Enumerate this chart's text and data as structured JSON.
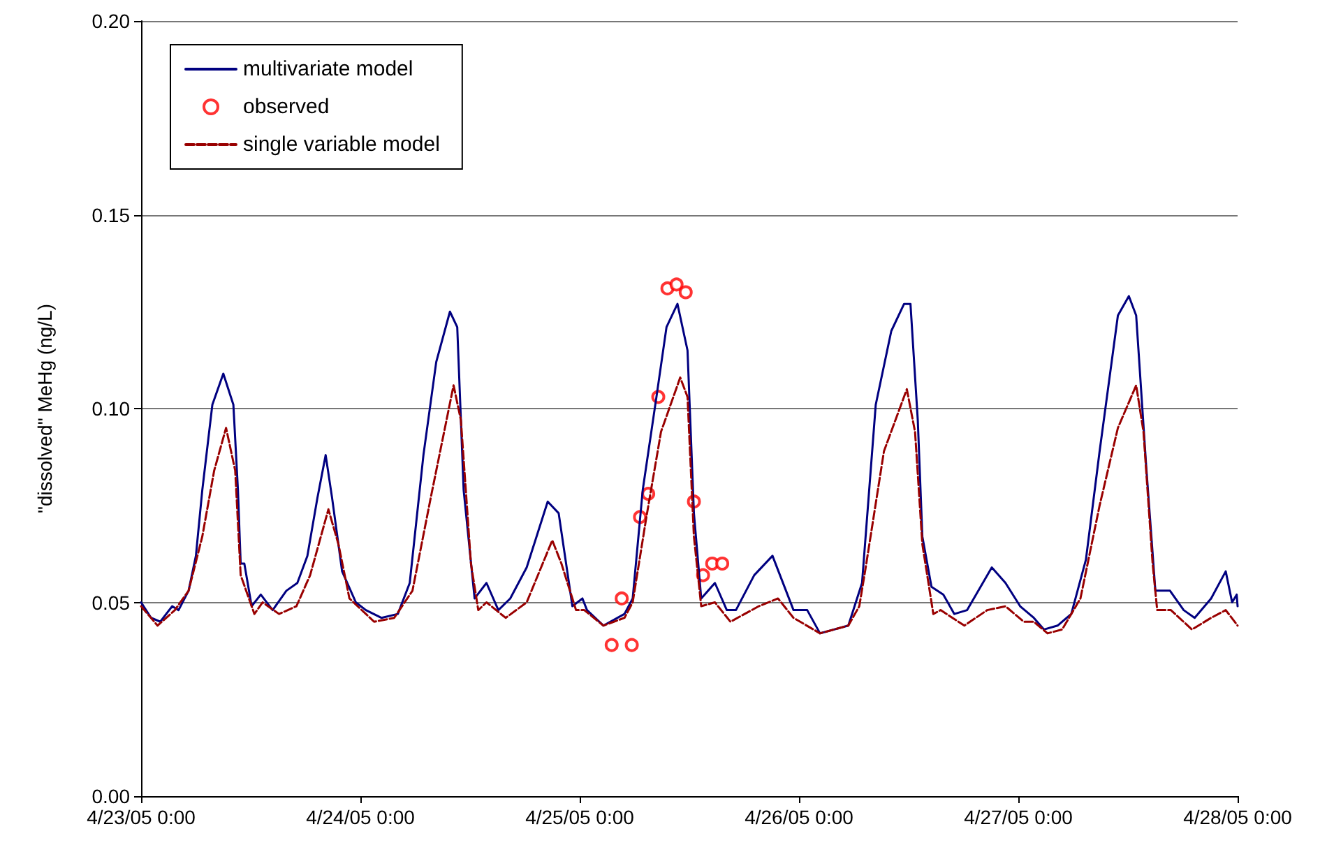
{
  "chart_data": {
    "type": "line",
    "ylabel": "\"dissolved\" MeHg (ng/L)",
    "xlim": [
      "--04-23T00:00",
      "--04-28T00:00"
    ],
    "xticks": [
      {
        "value": "--04-23T00:00",
        "label": "4/23/05 0:00"
      },
      {
        "value": "--04-24T00:00",
        "label": "4/24/05 0:00"
      },
      {
        "value": "--04-25T00:00",
        "label": "4/25/05 0:00"
      },
      {
        "value": "--04-26T00:00",
        "label": "4/26/05 0:00"
      },
      {
        "value": "--04-27T00:00",
        "label": "4/27/05 0:00"
      },
      {
        "value": "--04-28T00:00",
        "label": "4/28/05 0:00"
      }
    ],
    "ylim": [
      0,
      0.2
    ],
    "yticks": [
      {
        "value": 0,
        "label": "0.00"
      },
      {
        "value": 0.05,
        "label": "0.05"
      },
      {
        "value": 0.1,
        "label": "0.10"
      },
      {
        "value": 0.15,
        "label": "0.15"
      },
      {
        "value": 0.2,
        "label": "0.20"
      }
    ],
    "grid": "y",
    "legend": "top left",
    "series": [
      {
        "name": "multivariate model",
        "type": "line",
        "color": "#000080",
        "line_style": "solid",
        "marker": "none",
        "x": [
          "--04-23T00:00",
          "--04-23T01:06",
          "--04-23T02:06",
          "--04-23T03:24",
          "--04-23T04:06",
          "--04-23T05:12",
          "--04-23T06:00",
          "--04-23T06:42",
          "--04-23T07:48",
          "--04-23T09:00",
          "--04-23T10:06",
          "--04-23T10:36",
          "--04-23T10:54",
          "--04-23T11:18",
          "--04-23T12:06",
          "--04-23T13:06",
          "--04-23T14:24",
          "--04-23T15:54",
          "--04-23T17:06",
          "--04-23T18:12",
          "--04-23T19:18",
          "--04-23T20:12",
          "--04-23T20:54",
          "--04-23T22:00",
          "--04-23T23:30",
          "--04-24T00:36",
          "--04-24T02:18",
          "--04-24T04:06",
          "--04-24T05:24",
          "--04-24T06:54",
          "--04-24T08:18",
          "--04-24T09:48",
          "--04-24T10:36",
          "--04-24T11:18",
          "--04-24T12:30",
          "--04-24T13:48",
          "--04-24T15:06",
          "--04-24T16:24",
          "--04-24T18:12",
          "--04-24T20:30",
          "--04-24T21:42",
          "--04-24T23:12",
          "--04-25T00:18",
          "--04-25T00:48",
          "--04-25T02:36",
          "--04-25T04:54",
          "--04-25T05:48",
          "--04-25T06:54",
          "--04-25T08:24",
          "--04-25T09:30",
          "--04-25T10:42",
          "--04-25T11:48",
          "--04-25T12:30",
          "--04-25T13:18",
          "--04-25T14:48",
          "--04-25T16:06",
          "--04-25T17:06",
          "--04-25T19:06",
          "--04-25T21:06",
          "--04-25T23:24",
          "--04-26T00:54",
          "--04-26T02:18",
          "--04-26T05:24",
          "--04-26T06:54",
          "--04-26T08:24",
          "--04-26T10:06",
          "--04-26T11:30",
          "--04-26T12:12",
          "--04-26T13:00",
          "--04-26T13:30",
          "--04-26T14:30",
          "--04-26T15:48",
          "--04-26T17:00",
          "--04-26T18:24",
          "--04-26T21:06",
          "--04-26T22:36",
          "--04-27T00:12",
          "--04-27T01:42",
          "--04-27T02:48",
          "--04-27T04:18",
          "--04-27T05:48",
          "--04-27T07:24",
          "--04-27T08:54",
          "--04-27T10:54",
          "--04-27T12:06",
          "--04-27T12:54",
          "--04-27T14:00",
          "--04-27T15:00",
          "--04-27T16:36",
          "--04-27T18:06",
          "--04-27T19:18",
          "--04-27T21:06",
          "--04-27T22:42",
          "--04-27T23:24",
          "--04-27T23:54",
          "--04-28T00:00"
        ],
        "values": [
          0.05,
          0.046,
          0.045,
          0.049,
          0.048,
          0.053,
          0.062,
          0.079,
          0.101,
          0.109,
          0.101,
          0.079,
          0.06,
          0.06,
          0.049,
          0.052,
          0.048,
          0.053,
          0.055,
          0.062,
          0.077,
          0.088,
          0.077,
          0.058,
          0.05,
          0.048,
          0.046,
          0.047,
          0.055,
          0.088,
          0.112,
          0.125,
          0.121,
          0.079,
          0.051,
          0.055,
          0.048,
          0.051,
          0.059,
          0.076,
          0.073,
          0.049,
          0.051,
          0.048,
          0.044,
          0.047,
          0.051,
          0.079,
          0.103,
          0.121,
          0.127,
          0.115,
          0.073,
          0.051,
          0.055,
          0.048,
          0.048,
          0.057,
          0.062,
          0.048,
          0.048,
          0.042,
          0.044,
          0.055,
          0.101,
          0.12,
          0.127,
          0.127,
          0.097,
          0.067,
          0.054,
          0.052,
          0.047,
          0.048,
          0.059,
          0.055,
          0.049,
          0.046,
          0.043,
          0.044,
          0.047,
          0.061,
          0.089,
          0.124,
          0.129,
          0.124,
          0.085,
          0.053,
          0.053,
          0.048,
          0.046,
          0.051,
          0.058,
          0.05,
          0.052,
          0.049
        ]
      },
      {
        "name": "observed",
        "type": "scatter",
        "color": "#ff0000",
        "marker": "circle",
        "x": [
          "--04-25T03:30",
          "--04-25T04:36",
          "--04-25T05:42",
          "--04-25T06:36",
          "--04-25T07:30",
          "--04-25T08:36",
          "--04-25T09:36",
          "--04-25T10:36",
          "--04-25T11:36",
          "--04-25T12:30",
          "--04-25T13:30",
          "--04-25T14:30",
          "--04-25T15:36"
        ],
        "values": [
          0.039,
          0.051,
          0.039,
          0.072,
          0.078,
          0.103,
          0.131,
          0.132,
          0.13,
          0.076,
          0.057,
          0.06,
          0.06
        ]
      },
      {
        "name": "single variable model",
        "type": "line",
        "color": "#990000",
        "line_style": "dashed",
        "marker": "none",
        "x": [
          "--04-23T00:00",
          "--04-23T01:48",
          "--04-23T03:42",
          "--04-23T05:12",
          "--04-23T06:42",
          "--04-23T08:00",
          "--04-23T09:18",
          "--04-23T10:18",
          "--04-23T10:54",
          "--04-23T12:24",
          "--04-23T13:18",
          "--04-23T15:06",
          "--04-23T17:00",
          "--04-23T18:30",
          "--04-23T20:30",
          "--04-23T21:36",
          "--04-23T22:48",
          "--04-24T01:30",
          "--04-24T03:42",
          "--04-24T05:42",
          "--04-24T07:42",
          "--04-24T10:12",
          "--04-24T11:00",
          "--04-24T12:06",
          "--04-24T12:54",
          "--04-24T13:48",
          "--04-24T15:54",
          "--04-24T18:12",
          "--04-24T21:00",
          "--04-24T22:00",
          "--04-24T23:36",
          "--04-25T00:30",
          "--04-25T02:36",
          "--04-25T04:54",
          "--04-25T05:48",
          "--04-25T07:18",
          "--04-25T08:54",
          "--04-25T11:00",
          "--04-25T11:48",
          "--04-25T12:30",
          "--04-25T13:18",
          "--04-25T14:48",
          "--04-25T16:30",
          "--04-25T19:36",
          "--04-25T21:42",
          "--04-25T23:24",
          "--04-26T02:18",
          "--04-26T05:24",
          "--04-26T06:36",
          "--04-26T07:18",
          "--04-26T09:18",
          "--04-26T11:48",
          "--04-26T12:42",
          "--04-26T13:30",
          "--04-26T14:42",
          "--04-26T15:30",
          "--04-26T18:06",
          "--04-26T20:36",
          "--04-26T22:36",
          "--04-27T00:36",
          "--04-27T01:42",
          "--04-27T03:12",
          "--04-27T04:48",
          "--04-27T06:48",
          "--04-27T08:54",
          "--04-27T10:54",
          "--04-27T12:54",
          "--04-27T13:42",
          "--04-27T14:42",
          "--04-27T15:12",
          "--04-27T16:42",
          "--04-27T19:00",
          "--04-27T21:06",
          "--04-27T22:42",
          "--04-28T00:00"
        ],
        "values": [
          0.049,
          0.044,
          0.048,
          0.053,
          0.067,
          0.084,
          0.095,
          0.084,
          0.057,
          0.047,
          0.05,
          0.047,
          0.049,
          0.057,
          0.074,
          0.065,
          0.051,
          0.045,
          0.046,
          0.053,
          0.077,
          0.106,
          0.097,
          0.06,
          0.048,
          0.05,
          0.046,
          0.05,
          0.066,
          0.06,
          0.048,
          0.048,
          0.044,
          0.046,
          0.05,
          0.072,
          0.094,
          0.108,
          0.103,
          0.067,
          0.049,
          0.05,
          0.045,
          0.049,
          0.051,
          0.046,
          0.042,
          0.044,
          0.049,
          0.059,
          0.089,
          0.105,
          0.094,
          0.065,
          0.047,
          0.048,
          0.044,
          0.048,
          0.049,
          0.045,
          0.045,
          0.042,
          0.043,
          0.051,
          0.075,
          0.095,
          0.106,
          0.094,
          0.06,
          0.048,
          0.048,
          0.043,
          0.046,
          0.048,
          0.044
        ]
      }
    ]
  }
}
